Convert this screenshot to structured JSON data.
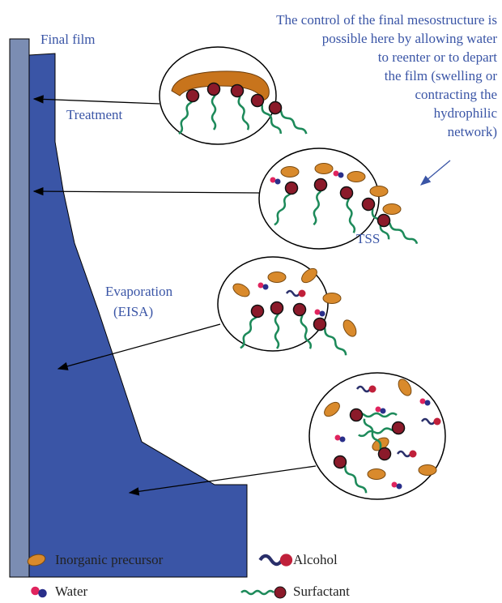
{
  "labels": {
    "final_film": "Final film",
    "treatment": "Treatment",
    "tss": "TSS",
    "evaporation": [
      "Evaporation",
      "(EISA)"
    ]
  },
  "annotation": [
    "The control of the final mesostructure is",
    "possible here by allowing water",
    "to reenter or to depart",
    "the film (swelling or",
    "contracting the",
    "hydrophilic",
    "network)"
  ],
  "legend": [
    {
      "label": "Inorganic precursor"
    },
    {
      "label": "Water"
    },
    {
      "label": "Alcohol"
    },
    {
      "label": "Surfactant"
    }
  ]
}
